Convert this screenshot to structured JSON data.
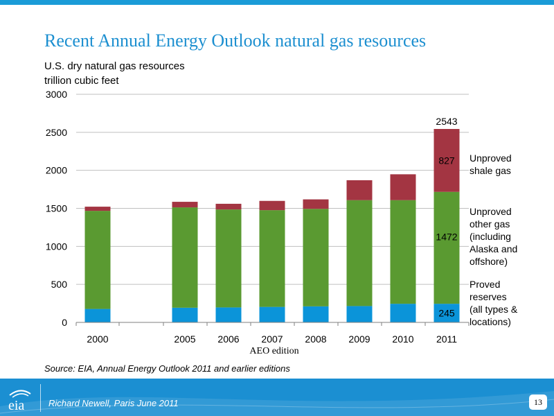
{
  "slide": {
    "title": "Recent Annual Energy Outlook natural gas resources",
    "subtitle_line1": "U.S. dry natural gas resources",
    "subtitle_line2": "trillion cubic feet",
    "source": "Source: EIA, Annual Energy Outlook 2011 and earlier editions",
    "footer_text": "Richard Newell, Paris June 2011",
    "page_number": "13",
    "logo_text": "eia"
  },
  "colors": {
    "accent": "#1c8fd0",
    "footer": "#1b8fd2",
    "proved": "#0b94d9",
    "other": "#5a9a31",
    "shale": "#a33542"
  },
  "chart_data": {
    "type": "bar",
    "stacked": true,
    "categories": [
      "2000",
      "2005",
      "2006",
      "2007",
      "2008",
      "2009",
      "2010",
      "2011"
    ],
    "series": [
      {
        "name": "Proved reserves (all types & locations)",
        "values": [
          177,
          193,
          197,
          204,
          211,
          215,
          245,
          245
        ]
      },
      {
        "name": "Unproved other gas (including Alaska and offshore)",
        "values": [
          1290,
          1320,
          1288,
          1272,
          1282,
          1393,
          1363,
          1472
        ]
      },
      {
        "name": "Unproved shale gas",
        "values": [
          55,
          73,
          75,
          122,
          125,
          262,
          340,
          827
        ]
      }
    ],
    "xlabel": "AEO edition",
    "ylabel": "",
    "ylim": [
      0,
      3000
    ],
    "yticks": [
      "0",
      "500",
      "1000",
      "1500",
      "2000",
      "2500",
      "3000"
    ],
    "grid": true,
    "legend_labels": [
      [
        "Proved",
        "reserves",
        "(all types &",
        "locations)"
      ],
      [
        "Unproved",
        "other gas",
        "(including",
        "Alaska and",
        "offshore)"
      ],
      [
        "Unproved",
        "shale gas"
      ]
    ],
    "data_labels": {
      "total_2011": "2543",
      "shale_2011": "827",
      "other_2011": "1472",
      "proved_2011": "245"
    }
  }
}
